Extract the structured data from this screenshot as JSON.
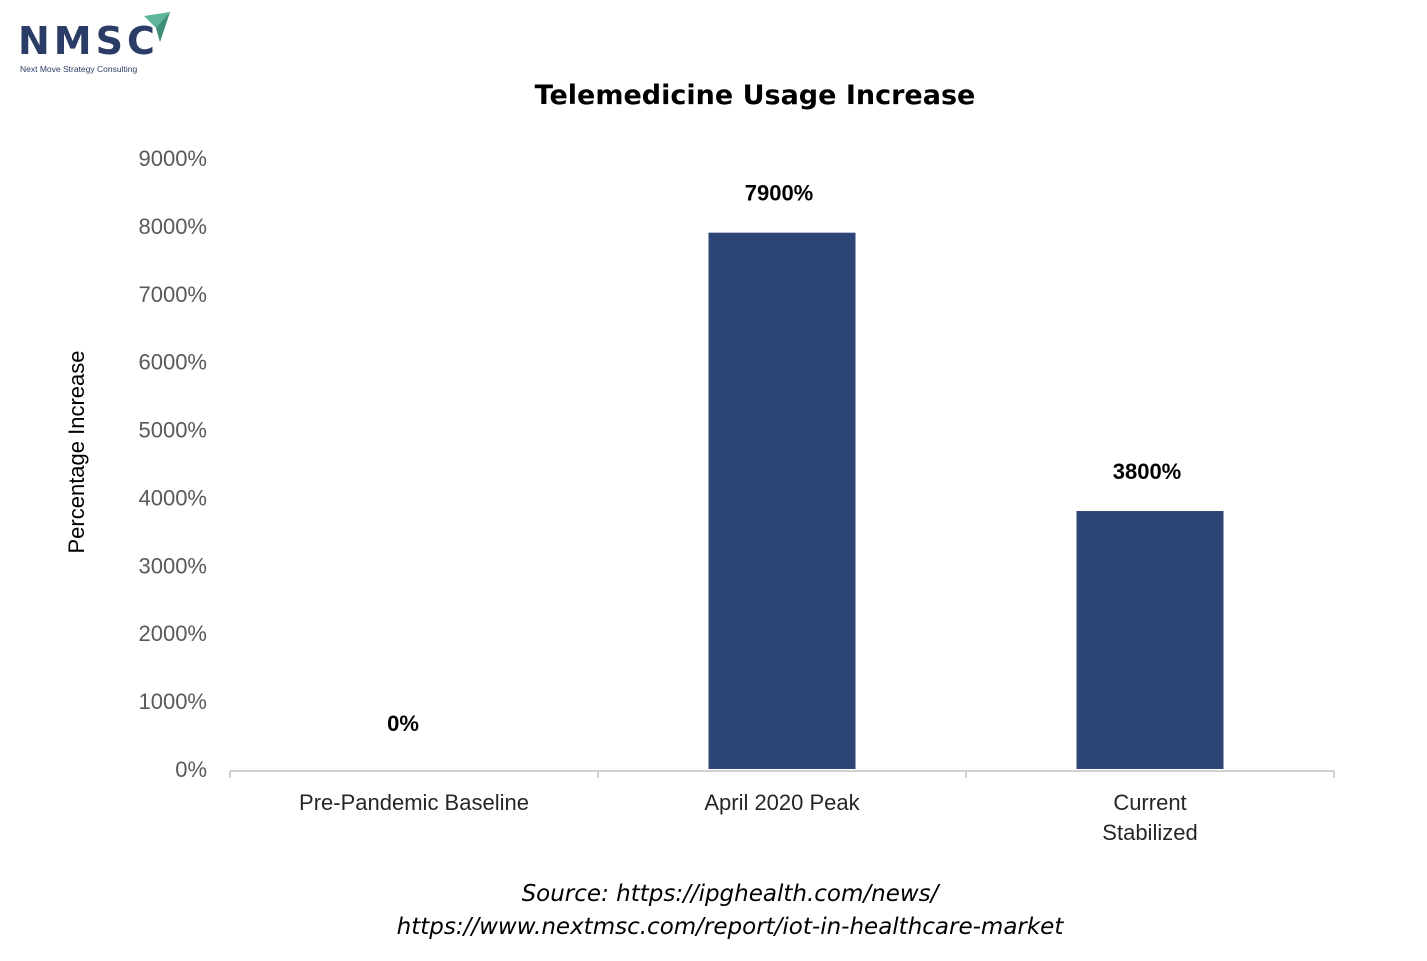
{
  "logo": {
    "name": "NMSC",
    "tagline": "Next Move Strategy Consulting",
    "colors": {
      "text": "#2b3d66",
      "arrow": "#5fb49c"
    }
  },
  "chart_data": {
    "type": "bar",
    "title": "Telemedicine Usage Increase",
    "xlabel": "",
    "ylabel": "Percentage Increase",
    "categories": [
      [
        "Pre-Pandemic Baseline"
      ],
      [
        "April 2020 Peak"
      ],
      [
        "Current",
        "Stabilized"
      ]
    ],
    "values": [
      0,
      7900,
      3800
    ],
    "data_labels": [
      "0%",
      "7900%",
      "3800%"
    ],
    "y_ticks": [
      "0%",
      "1000%",
      "2000%",
      "3000%",
      "4000%",
      "5000%",
      "6000%",
      "7000%",
      "8000%",
      "9000%"
    ],
    "ylim": [
      0,
      9000
    ],
    "grid": false,
    "legend": "none",
    "bar_color": "#2e4677"
  },
  "source": {
    "line1": "Source: https://ipghealth.com/news/",
    "line2": "https://www.nextmsc.com/report/iot-in-healthcare-market"
  }
}
